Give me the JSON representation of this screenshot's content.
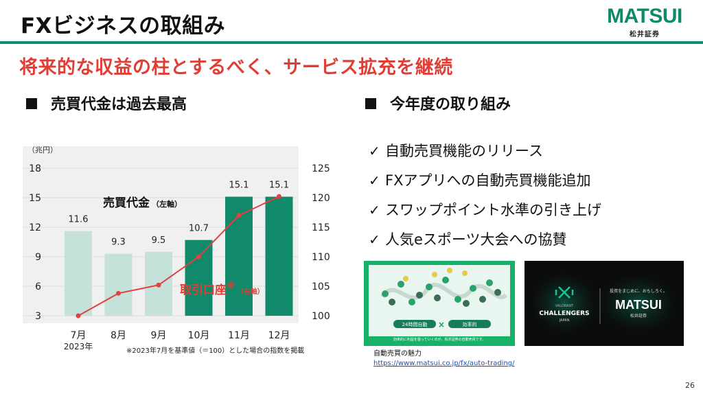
{
  "header": {
    "title": "FXビジネスの取組み",
    "logo": "MATSUI",
    "logo_sub": "松井証券"
  },
  "subtitle": "将来的な収益の柱とするべく、サービス拡充を継続",
  "left_section": {
    "heading": "売買代金は過去最高"
  },
  "right_section": {
    "heading": "今年度の取り組み"
  },
  "chart_data": {
    "type": "bar",
    "categories": [
      "7月",
      "8月",
      "9月",
      "10月",
      "11月",
      "12月"
    ],
    "year_label": "2023年",
    "left_unit": "（兆円）",
    "ylim": [
      3,
      18
    ],
    "yticks": [
      3,
      6,
      9,
      12,
      15,
      18
    ],
    "y2lim": [
      100,
      125
    ],
    "y2ticks": [
      100,
      105,
      110,
      115,
      120,
      125
    ],
    "series": [
      {
        "name": "売買代金",
        "axis_note": "（左軸）",
        "type": "bar",
        "values": [
          11.6,
          9.3,
          9.5,
          10.7,
          15.1,
          15.1
        ],
        "labels": [
          "11.6",
          "9.3",
          "9.5",
          "10.7",
          "15.1",
          "15.1"
        ]
      },
      {
        "name": "取引口座",
        "axis_note": "（右軸）",
        "mark": "※",
        "type": "line",
        "values": [
          100,
          103.8,
          105.2,
          110,
          117,
          120.2
        ]
      }
    ],
    "colors": {
      "bar_light": "#c5e2da",
      "bar_dark": "#11896b",
      "line": "#e34040"
    },
    "footnote": "※2023年7月を基準値（＝100）とした場合の指数を掲載"
  },
  "initiatives": [
    "自動売買機能のリリース",
    "FXアプリへの自動売買機能追加",
    "スワップポイント水準の引き上げ",
    "人気eスポーツ大会への協賛"
  ],
  "check_glyph": "✓",
  "images": {
    "shot1": {
      "tag_left": "24時間自動",
      "tag_right": "効率的",
      "caption": "効率的に利益を狙っていくのが、松井証券の自動売買です。"
    },
    "shot2": {
      "left_title": "CHALLENGERS",
      "left_small": "VALORANT",
      "left_sub": "JAPAN",
      "tagline": "投資をまじめに、おもしろく。",
      "brand": "MATSUI",
      "brand_sub": "松井証券"
    }
  },
  "caption": {
    "text": "自動売買の魅力",
    "link": "https://www.matsui.co.jp/fx/auto-trading/"
  },
  "page_number": "26"
}
